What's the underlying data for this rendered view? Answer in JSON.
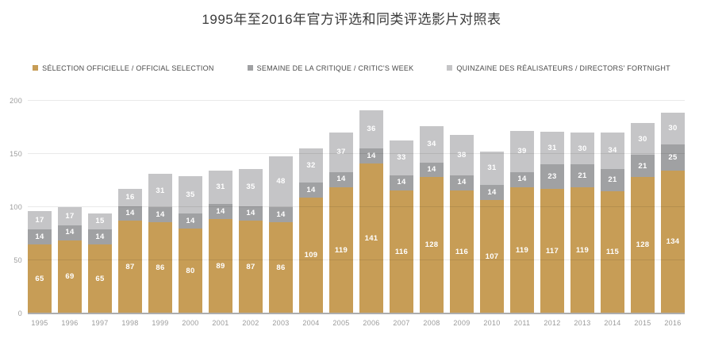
{
  "title": "1995年至2016年官方评选和同类评选影片对照表",
  "legend": {
    "items": [
      {
        "key": "official",
        "label": "SÉLECTION OFFICIELLE / OFFICIAL SELECTION",
        "color": "#C79D56",
        "icon": "official-selection-swatch-icon"
      },
      {
        "key": "critics_week",
        "label": "SEMAINE DE LA CRITIQUE / CRITIC'S WEEK",
        "color": "#A0A1A3",
        "icon": "critics-week-swatch-icon"
      },
      {
        "key": "directors_fortnight",
        "label": "QUINZAINE DES RÉALISATEURS / DIRECTORS' FORTNIGHT",
        "color": "#C5C5C7",
        "icon": "directors-fortnight-swatch-icon"
      }
    ]
  },
  "chart_data": {
    "type": "bar",
    "stacked": true,
    "title": "1995年至2016年官方评选和同类评选影片对照表",
    "categories": [
      "1995",
      "1996",
      "1997",
      "1998",
      "1999",
      "2000",
      "2001",
      "2002",
      "2003",
      "2004",
      "2005",
      "2006",
      "2007",
      "2008",
      "2009",
      "2010",
      "2011",
      "2012",
      "2013",
      "2014",
      "2015",
      "2016"
    ],
    "series": [
      {
        "key": "official",
        "name": "SÉLECTION OFFICIELLE / OFFICIAL SELECTION",
        "color": "#C79D56",
        "values": [
          65,
          69,
          65,
          87,
          86,
          80,
          89,
          87,
          86,
          109,
          119,
          141,
          116,
          128,
          116,
          107,
          119,
          117,
          119,
          115,
          128,
          134
        ]
      },
      {
        "key": "critics_week",
        "name": "SEMAINE DE LA CRITIQUE / CRITIC'S WEEK",
        "color": "#A0A1A3",
        "values": [
          14,
          14,
          14,
          14,
          14,
          14,
          14,
          14,
          14,
          14,
          14,
          14,
          14,
          14,
          14,
          14,
          14,
          23,
          21,
          21,
          21,
          25
        ]
      },
      {
        "key": "directors_fortnight",
        "name": "QUINZAINE DES RÉALISATEURS / DIRECTORS' FORTNIGHT",
        "color": "#C5C5C7",
        "values": [
          17,
          17,
          15,
          16,
          31,
          35,
          31,
          35,
          48,
          32,
          37,
          36,
          33,
          34,
          38,
          31,
          39,
          31,
          30,
          34,
          30,
          30
        ]
      }
    ],
    "xlabel": "",
    "ylabel": "",
    "ylim": [
      0,
      200
    ],
    "yticks": [
      0,
      50,
      100,
      150,
      200
    ],
    "grid": true,
    "legend_position": "top",
    "value_labels": "inside-segments-white"
  },
  "colors": {
    "background": "#ffffff",
    "gridline": "#e9e9e9",
    "axis_line": "#adadad",
    "title_text": "#3b3b3b",
    "legend_text": "#4a4a4a",
    "tick_text": "#9c9c9c",
    "bar_value_text": "#ffffff"
  }
}
